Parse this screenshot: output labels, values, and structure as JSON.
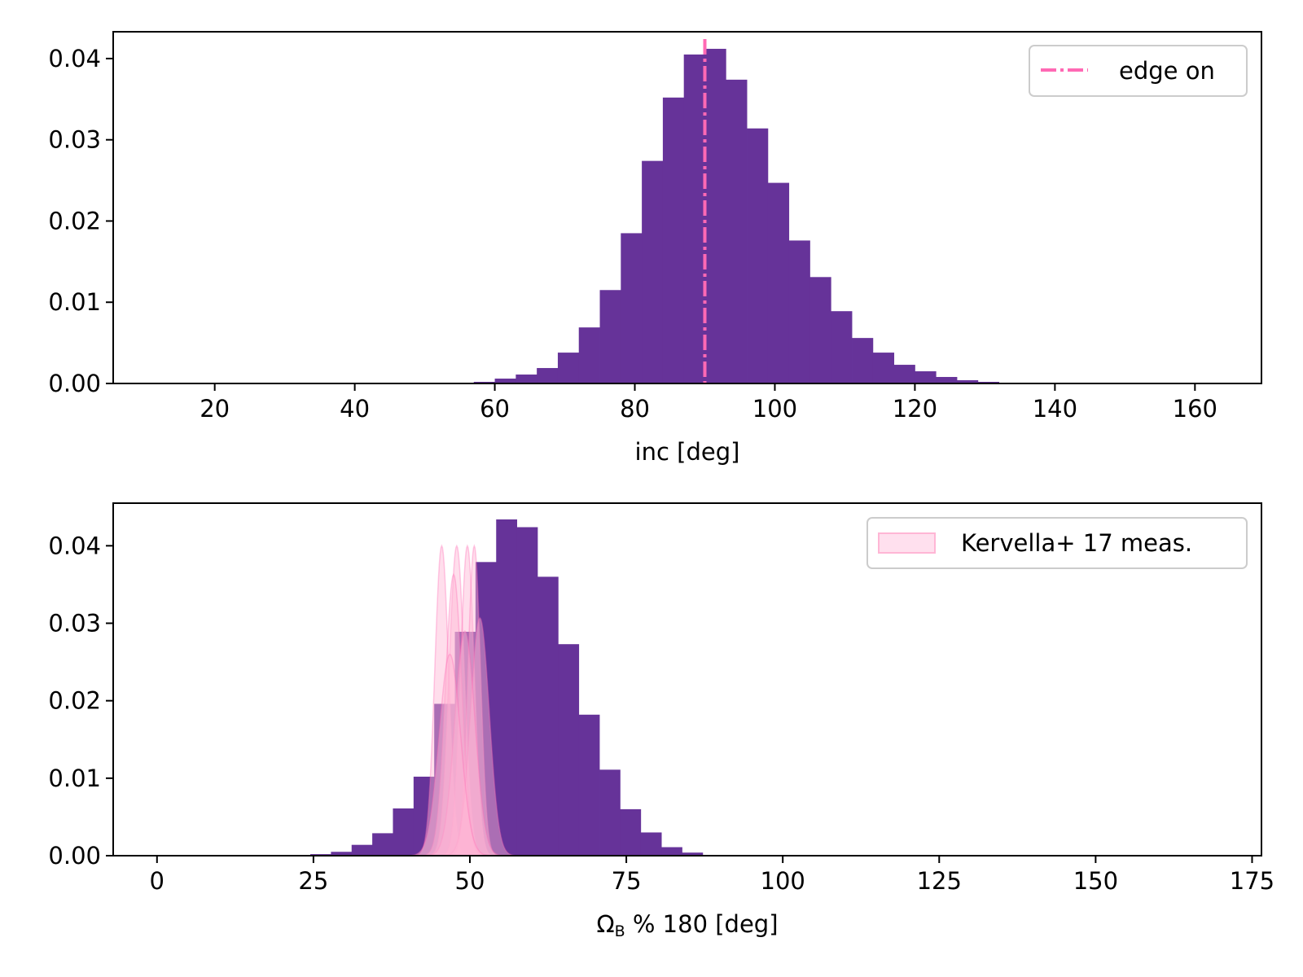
{
  "colors": {
    "hist": "#663399",
    "edge_line": "#ff69b4",
    "gauss_fill": "#ffb6d5",
    "gauss_line": "#ff69b4",
    "legend_patch_fill": "#ffe0ee",
    "legend_patch_edge": "#ffb6d5",
    "frame": "#000000",
    "legend_frame": "#cccccc"
  },
  "chart_data": [
    {
      "type": "bar",
      "xlabel": "inc [deg]",
      "ylabel": "",
      "xlim": [
        5.5,
        169.5
      ],
      "ylim": [
        0,
        0.0433
      ],
      "xticks": [
        20,
        40,
        60,
        80,
        100,
        120,
        140,
        160
      ],
      "yticks": [
        0.0,
        0.01,
        0.02,
        0.03,
        0.04
      ],
      "ytick_labels": [
        "0.00",
        "0.01",
        "0.02",
        "0.03",
        "0.04"
      ],
      "bin_edges": [
        57.0,
        60.0,
        63.0,
        66.0,
        69.0,
        72.0,
        75.0,
        78.0,
        81.0,
        84.0,
        87.0,
        90.0,
        93.0,
        96.0,
        99.0,
        102.0,
        105.0,
        108.0,
        111.0,
        114.0,
        117.0,
        120.0,
        123.0,
        126.0,
        129.0,
        132.0
      ],
      "values": [
        0.0002,
        0.0006,
        0.0011,
        0.0019,
        0.0038,
        0.0069,
        0.0115,
        0.0185,
        0.0274,
        0.0352,
        0.0405,
        0.0412,
        0.0374,
        0.0314,
        0.0247,
        0.0176,
        0.0131,
        0.0089,
        0.0056,
        0.0038,
        0.0023,
        0.0015,
        0.0008,
        0.0004,
        0.0002
      ],
      "vline": {
        "x": 90,
        "style": "dash-dot",
        "label": "edge on"
      },
      "legend": {
        "position": "top-right",
        "entries": [
          "edge on"
        ]
      }
    },
    {
      "type": "bar",
      "xlabel_main": "Ω",
      "xlabel_sub": "B",
      "xlabel_rest": " % 180 [deg]",
      "ylabel": "",
      "xlim": [
        -7,
        176.5
      ],
      "ylim": [
        0,
        0.0455
      ],
      "xticks": [
        0,
        25,
        50,
        75,
        100,
        125,
        150,
        175
      ],
      "yticks": [
        0.0,
        0.01,
        0.02,
        0.03,
        0.04
      ],
      "ytick_labels": [
        "0.00",
        "0.01",
        "0.02",
        "0.03",
        "0.04"
      ],
      "bin_edges": [
        24.5,
        27.8,
        31.1,
        34.4,
        37.7,
        41.0,
        44.3,
        47.6,
        50.9,
        54.2,
        57.5,
        60.8,
        64.1,
        67.4,
        70.7,
        74.0,
        77.3,
        80.6,
        83.9,
        87.2,
        90.5
      ],
      "values": [
        0.0002,
        0.0005,
        0.0014,
        0.0029,
        0.0061,
        0.0102,
        0.0196,
        0.0289,
        0.0379,
        0.0434,
        0.0424,
        0.036,
        0.0273,
        0.0182,
        0.0111,
        0.006,
        0.003,
        0.0011,
        0.0004,
        0.0001
      ],
      "overlay_gaussians": {
        "label": "Kervella+ 17 meas.",
        "components": [
          {
            "mean": 45.5,
            "sigma": 1.1,
            "peak": 0.04
          },
          {
            "mean": 47.9,
            "sigma": 1.2,
            "peak": 0.04
          },
          {
            "mean": 49.6,
            "sigma": 1.1,
            "peak": 0.04
          },
          {
            "mean": 50.7,
            "sigma": 1.0,
            "peak": 0.04
          },
          {
            "mean": 47.4,
            "sigma": 1.3,
            "peak": 0.0363
          },
          {
            "mean": 51.6,
            "sigma": 1.5,
            "peak": 0.0307
          },
          {
            "mean": 49.2,
            "sigma": 1.6,
            "peak": 0.029
          },
          {
            "mean": 46.8,
            "sigma": 1.7,
            "peak": 0.026
          }
        ]
      },
      "legend": {
        "position": "top-right",
        "entries": [
          "Kervella+ 17 meas."
        ]
      }
    }
  ]
}
